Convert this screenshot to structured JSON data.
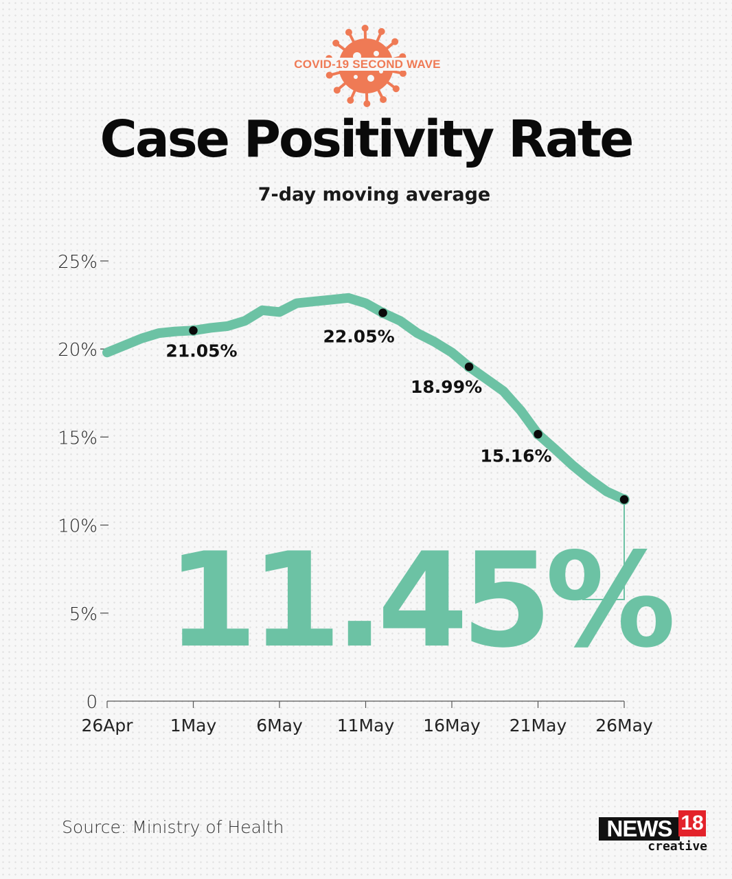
{
  "header": {
    "badge_text": "COVID-19 SECOND WAVE",
    "title": "Case Positivity Rate",
    "subtitle": "7-day moving average"
  },
  "colors": {
    "line": "#6cc2a4",
    "badge": "#ef7a55",
    "dot": "#0a0a0a",
    "logo_red": "#e3222a"
  },
  "chart_data": {
    "type": "line",
    "title": "Case Positivity Rate",
    "subtitle": "7-day moving average",
    "xlabel": "",
    "ylabel": "",
    "ylim": [
      0,
      25
    ],
    "yticks": [
      0,
      5,
      10,
      15,
      20,
      25
    ],
    "ytick_labels": [
      "0",
      "5%",
      "10%",
      "15%",
      "20%",
      "25%"
    ],
    "xlim": [
      0,
      30
    ],
    "xticks": [
      0,
      5,
      10,
      15,
      20,
      25,
      30
    ],
    "xtick_labels": [
      "26Apr",
      "1May",
      "6May",
      "11May",
      "16May",
      "21May",
      "26May"
    ],
    "grid": false,
    "legend": "none",
    "series": [
      {
        "name": "Case positivity rate (7-day moving average, %)",
        "x": [
          0,
          1,
          2,
          3,
          4,
          5,
          6,
          7,
          8,
          9,
          10,
          11,
          12,
          13,
          14,
          15,
          16,
          17,
          18,
          19,
          20,
          21,
          22,
          23,
          24,
          25,
          26,
          27,
          28,
          29,
          30
        ],
        "values": [
          19.8,
          20.2,
          20.6,
          20.9,
          21.0,
          21.05,
          21.2,
          21.3,
          21.6,
          22.2,
          22.1,
          22.6,
          22.7,
          22.8,
          22.9,
          22.6,
          22.05,
          21.6,
          20.9,
          20.4,
          19.8,
          18.99,
          18.3,
          17.6,
          16.5,
          15.16,
          14.3,
          13.4,
          12.6,
          11.9,
          11.45
        ]
      }
    ],
    "annotations": [
      {
        "x": 5,
        "value": 21.05,
        "label": "21.05%"
      },
      {
        "x": 16,
        "value": 22.05,
        "label": "22.05%"
      },
      {
        "x": 21,
        "value": 18.99,
        "label": "18.99%"
      },
      {
        "x": 25,
        "value": 15.16,
        "label": "15.16%"
      },
      {
        "x": 30,
        "value": 11.45,
        "label": "11.45%",
        "highlight": true
      }
    ],
    "highlight_value": "11.45%"
  },
  "footer": {
    "source": "Source: Ministry of Health",
    "logo_news": "NEWS",
    "logo_num": "18",
    "logo_sub": "creative"
  }
}
